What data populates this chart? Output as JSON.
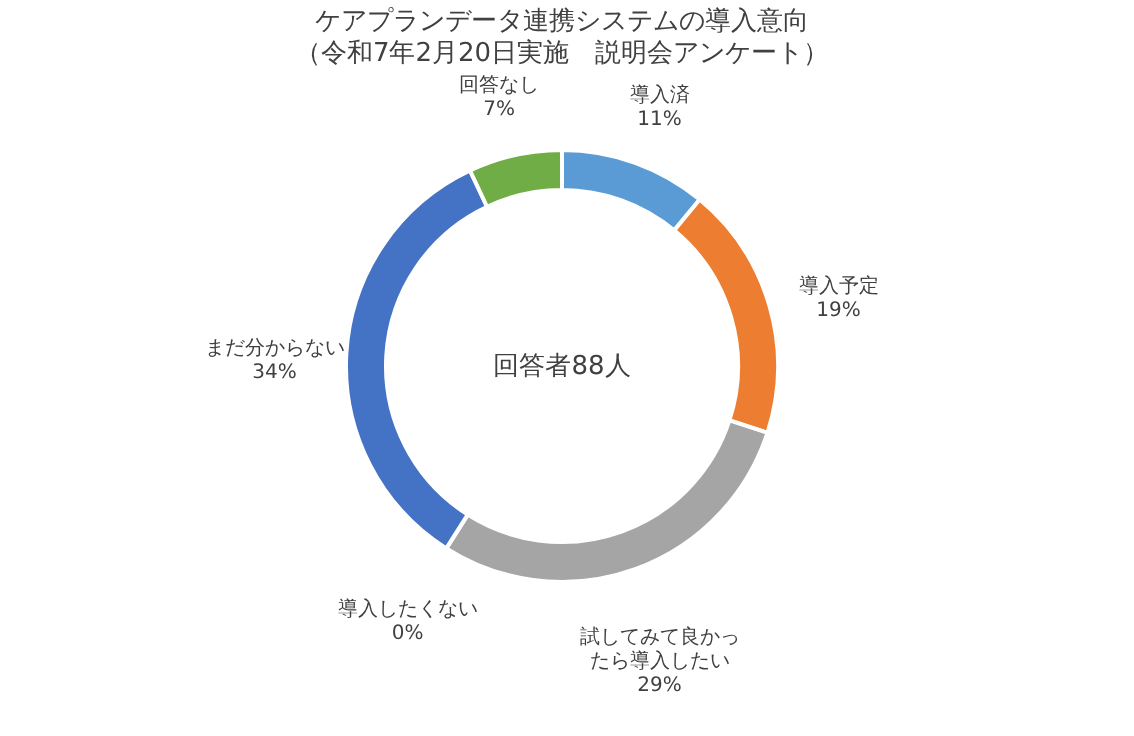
{
  "chart_data": {
    "type": "donut",
    "title": "ケアプランデータ連携システムの導入意向",
    "subtitle": "（令和7年2月20日実施　説明会アンケート）",
    "categories": [
      "導入済",
      "導入予定",
      "試してみて良かったら導入したい",
      "導入したくない",
      "まだ分からない",
      "回答なし"
    ],
    "values": [
      11,
      19,
      29,
      0,
      34,
      7
    ],
    "value_labels": [
      "11%",
      "19%",
      "29%",
      "0%",
      "34%",
      "7%"
    ],
    "colors": [
      "#5b9bd5",
      "#ed7d31",
      "#a5a5a5",
      "#ffc000",
      "#4472c4",
      "#70ad47"
    ],
    "annotations": [
      "回答者88人"
    ],
    "legend": false
  }
}
